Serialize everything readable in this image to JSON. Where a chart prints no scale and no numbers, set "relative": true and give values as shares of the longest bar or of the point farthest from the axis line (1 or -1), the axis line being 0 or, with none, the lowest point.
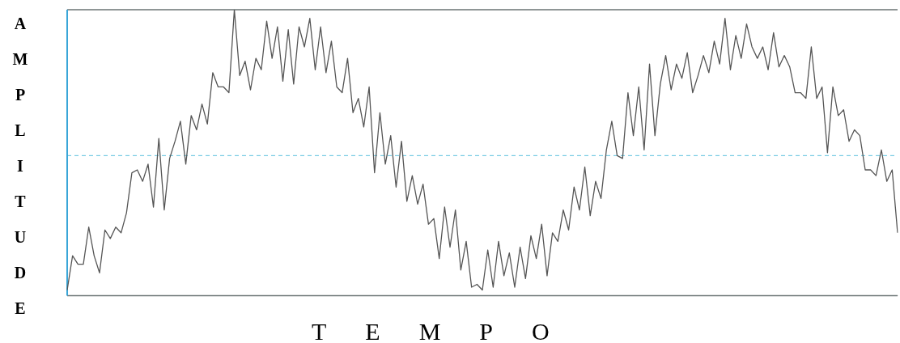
{
  "chart_data": {
    "type": "line",
    "xlabel": "TEMPO",
    "ylabel": "AMPLITUDE",
    "relative": true,
    "legend": false,
    "marker": "none",
    "line_style": "solid",
    "categories": [
      null,
      null,
      null,
      null,
      null,
      null,
      null,
      null,
      null,
      null,
      null,
      null,
      null,
      null,
      null,
      null,
      null,
      null,
      null,
      null,
      null,
      null,
      null,
      null,
      null,
      null,
      null,
      null,
      null,
      null,
      null,
      null,
      null,
      null,
      null,
      null,
      null,
      null,
      null,
      null,
      null,
      null,
      null,
      null,
      null,
      null,
      null,
      null,
      null,
      null,
      null,
      null,
      null,
      null,
      null,
      null,
      null,
      null,
      null,
      null,
      null,
      null,
      null,
      null,
      null,
      null,
      null,
      null,
      null,
      null,
      null,
      null,
      null,
      null,
      null,
      null,
      null,
      null,
      null,
      null,
      null,
      null,
      null,
      null,
      null,
      null,
      null,
      null,
      null,
      null,
      null,
      null,
      null,
      null,
      null,
      null,
      null,
      null,
      null,
      null,
      null,
      null,
      null,
      null,
      null,
      null,
      null,
      null,
      null,
      null,
      null,
      null,
      null,
      null,
      null,
      null,
      null,
      null,
      null,
      null,
      null,
      null,
      null,
      null,
      null,
      null,
      null,
      null,
      null,
      null,
      null,
      null,
      null,
      null,
      null,
      null,
      null,
      null,
      null,
      null,
      null,
      null,
      null,
      null,
      null,
      null,
      null,
      null,
      null,
      null,
      null,
      null,
      null,
      null,
      null
    ],
    "series": [
      {
        "color": "#555555",
        "values": [
          0.02,
          0.14,
          0.11,
          0.11,
          0.24,
          0.14,
          0.08,
          0.23,
          0.2,
          0.24,
          0.22,
          0.29,
          0.43,
          0.44,
          0.4,
          0.46,
          0.31,
          0.55,
          0.3,
          0.48,
          0.54,
          0.61,
          0.46,
          0.63,
          0.58,
          0.67,
          0.6,
          0.78,
          0.73,
          0.73,
          0.71,
          1,
          0.77,
          0.82,
          0.72,
          0.83,
          0.79,
          0.96,
          0.83,
          0.94,
          0.75,
          0.93,
          0.74,
          0.94,
          0.87,
          0.97,
          0.79,
          0.94,
          0.78,
          0.89,
          0.73,
          0.71,
          0.83,
          0.64,
          0.69,
          0.59,
          0.73,
          0.43,
          0.64,
          0.46,
          0.56,
          0.38,
          0.54,
          0.33,
          0.42,
          0.32,
          0.39,
          0.25,
          0.27,
          0.13,
          0.31,
          0.17,
          0.3,
          0.09,
          0.19,
          0.03,
          0.04,
          0.02,
          0.16,
          0.03,
          0.19,
          0.07,
          0.15,
          0.03,
          0.17,
          0.06,
          0.21,
          0.13,
          0.25,
          0.07,
          0.22,
          0.19,
          0.3,
          0.23,
          0.38,
          0.3,
          0.45,
          0.28,
          0.4,
          0.34,
          0.51,
          0.61,
          0.49,
          0.48,
          0.71,
          0.56,
          0.73,
          0.51,
          0.81,
          0.56,
          0.74,
          0.84,
          0.72,
          0.81,
          0.76,
          0.85,
          0.71,
          0.77,
          0.84,
          0.78,
          0.89,
          0.81,
          0.97,
          0.79,
          0.91,
          0.83,
          0.95,
          0.87,
          0.83,
          0.87,
          0.79,
          0.92,
          0.8,
          0.84,
          0.8,
          0.71,
          0.71,
          0.69,
          0.87,
          0.69,
          0.73,
          0.5,
          0.73,
          0.63,
          0.65,
          0.54,
          0.58,
          0.56,
          0.44,
          0.44,
          0.42,
          0.51,
          0.4,
          0.44,
          0.22
        ]
      }
    ],
    "ref_lines": [
      {
        "axis": "y",
        "value": 0.49,
        "color": "#5bc0de",
        "line_style": "dashed"
      }
    ]
  }
}
